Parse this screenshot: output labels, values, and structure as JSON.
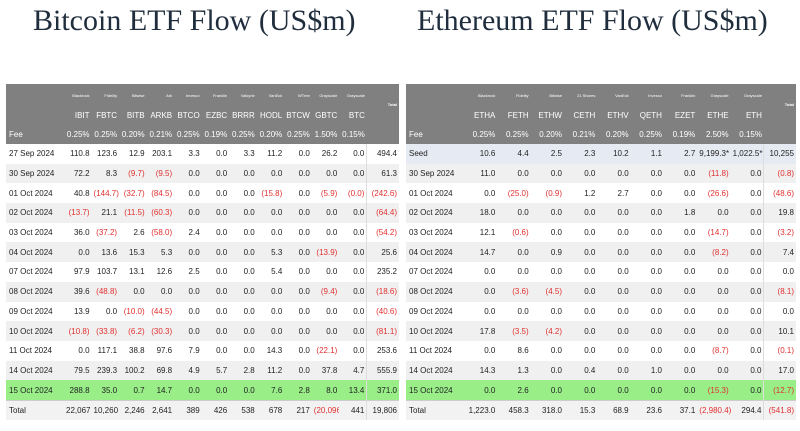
{
  "btc": {
    "title": "Bitcoin ETF Flow (US$m)",
    "issuers": [
      "Blackrock",
      "Fidelity",
      "Bitwise",
      "Ark",
      "Invesco",
      "Franklin",
      "Valkyrie",
      "VanEck",
      "WTree",
      "Grayscale",
      "Grayscale"
    ],
    "tickers": [
      "IBIT",
      "FBTC",
      "BITB",
      "ARKB",
      "BTCO",
      "EZBC",
      "BRRR",
      "HODL",
      "BTCW",
      "GBTC",
      "BTC"
    ],
    "total_header": "Total",
    "fee_label": "Fee",
    "fees": [
      "0.25%",
      "0.25%",
      "0.20%",
      "0.21%",
      "0.25%",
      "0.19%",
      "0.25%",
      "0.20%",
      "0.25%",
      "1.50%",
      "0.15%"
    ],
    "rows": [
      {
        "date": "27 Sep 2024",
        "values": [
          "110.8",
          "123.6",
          "12.9",
          "203.1",
          "3.3",
          "0.0",
          "3.3",
          "11.2",
          "0.0",
          "26.2",
          "0.0"
        ],
        "total": "494.4"
      },
      {
        "date": "30 Sep 2024",
        "values": [
          "72.2",
          "8.3",
          "(9.7)",
          "(9.5)",
          "0.0",
          "0.0",
          "0.0",
          "0.0",
          "0.0",
          "0.0",
          "0.0"
        ],
        "total": "61.3"
      },
      {
        "date": "01 Oct 2024",
        "values": [
          "40.8",
          "(144.7)",
          "(32.7)",
          "(84.5)",
          "0.0",
          "0.0",
          "0.0",
          "(15.8)",
          "0.0",
          "(5.9)",
          "(0.0)"
        ],
        "total": "(242.6)"
      },
      {
        "date": "02 Oct 2024",
        "values": [
          "(13.7)",
          "21.1",
          "(11.5)",
          "(60.3)",
          "0.0",
          "0.0",
          "0.0",
          "0.0",
          "0.0",
          "0.0",
          "0.0"
        ],
        "total": "(64.4)"
      },
      {
        "date": "03 Oct 2024",
        "values": [
          "36.0",
          "(37.2)",
          "2.6",
          "(58.0)",
          "2.4",
          "0.0",
          "0.0",
          "0.0",
          "0.0",
          "0.0",
          "0.0"
        ],
        "total": "(54.2)"
      },
      {
        "date": "04 Oct 2024",
        "values": [
          "0.0",
          "13.6",
          "15.3",
          "5.3",
          "0.0",
          "0.0",
          "0.0",
          "5.3",
          "0.0",
          "(13.9)",
          "0.0"
        ],
        "total": "25.6"
      },
      {
        "date": "07 Oct 2024",
        "values": [
          "97.9",
          "103.7",
          "13.1",
          "12.6",
          "2.5",
          "0.0",
          "0.0",
          "5.4",
          "0.0",
          "0.0",
          "0.0"
        ],
        "total": "235.2"
      },
      {
        "date": "08 Oct 2024",
        "values": [
          "39.6",
          "(48.8)",
          "0.0",
          "0.0",
          "0.0",
          "0.0",
          "0.0",
          "0.0",
          "0.0",
          "(9.4)",
          "0.0"
        ],
        "total": "(18.6)"
      },
      {
        "date": "09 Oct 2024",
        "values": [
          "13.9",
          "0.0",
          "(10.0)",
          "(44.5)",
          "0.0",
          "0.0",
          "0.0",
          "0.0",
          "0.0",
          "0.0",
          "0.0"
        ],
        "total": "(40.6)"
      },
      {
        "date": "10 Oct 2024",
        "values": [
          "(10.8)",
          "(33.8)",
          "(6.2)",
          "(30.3)",
          "0.0",
          "0.0",
          "0.0",
          "0.0",
          "0.0",
          "0.0",
          "0.0"
        ],
        "total": "(81.1)"
      },
      {
        "date": "11 Oct 2024",
        "values": [
          "0.0",
          "117.1",
          "38.8",
          "97.6",
          "7.9",
          "0.0",
          "0.0",
          "14.3",
          "0.0",
          "(22.1)",
          "0.0"
        ],
        "total": "253.6"
      },
      {
        "date": "14 Oct 2024",
        "values": [
          "79.5",
          "239.3",
          "100.2",
          "69.8",
          "4.9",
          "5.7",
          "2.8",
          "11.2",
          "0.0",
          "37.8",
          "4.7"
        ],
        "total": "555.9"
      },
      {
        "date": "15 Oct 2024",
        "values": [
          "288.8",
          "35.0",
          "0.7",
          "14.7",
          "0.0",
          "0.0",
          "0.0",
          "7.6",
          "2.8",
          "8.0",
          "13.4"
        ],
        "total": "371.0",
        "highlight": true
      }
    ],
    "totals_label": "Total",
    "totals": [
      "22,067",
      "10,260",
      "2,246",
      "2,641",
      "389",
      "426",
      "538",
      "678",
      "217",
      "(20,096)",
      "441"
    ],
    "grand_total": "19,806"
  },
  "eth": {
    "title": "Ethereum ETF Flow (US$m)",
    "issuers": [
      "Blackrock",
      "Fidelity",
      "Bitwise",
      "21 Shares",
      "VanEck",
      "Invesco",
      "Franklin",
      "Grayscale",
      "Grayscale"
    ],
    "tickers": [
      "ETHA",
      "FETH",
      "ETHW",
      "CETH",
      "ETHV",
      "QETH",
      "EZET",
      "ETHE",
      "ETH"
    ],
    "total_header": "Total",
    "fee_label": "Fee",
    "fees": [
      "0.25%",
      "0.25%",
      "0.20%",
      "0.21%",
      "0.20%",
      "0.25%",
      "0.19%",
      "2.50%",
      "0.15%"
    ],
    "rows": [
      {
        "date": "Seed",
        "values": [
          "10.6",
          "4.4",
          "2.5",
          "2.3",
          "10.2",
          "1.1",
          "2.7",
          "9,199.3*",
          "1,022.5*"
        ],
        "total": "10,255",
        "seed": true
      },
      {
        "date": "30 Sep 2024",
        "values": [
          "11.0",
          "0.0",
          "0.0",
          "0.0",
          "0.0",
          "0.0",
          "0.0",
          "(11.8)",
          "0.0"
        ],
        "total": "(0.8)"
      },
      {
        "date": "01 Oct 2024",
        "values": [
          "0.0",
          "(25.0)",
          "(0.9)",
          "1.2",
          "2.7",
          "0.0",
          "0.0",
          "(26.6)",
          "0.0"
        ],
        "total": "(48.6)"
      },
      {
        "date": "02 Oct 2024",
        "values": [
          "18.0",
          "0.0",
          "0.0",
          "0.0",
          "0.0",
          "0.0",
          "1.8",
          "0.0",
          "0.0"
        ],
        "total": "19.8"
      },
      {
        "date": "03 Oct 2024",
        "values": [
          "12.1",
          "(0.6)",
          "0.0",
          "0.0",
          "0.0",
          "0.0",
          "0.0",
          "(14.7)",
          "0.0"
        ],
        "total": "(3.2)"
      },
      {
        "date": "04 Oct 2024",
        "values": [
          "14.7",
          "0.0",
          "0.9",
          "0.0",
          "0.0",
          "0.0",
          "0.0",
          "(8.2)",
          "0.0"
        ],
        "total": "7.4"
      },
      {
        "date": "07 Oct 2024",
        "values": [
          "0.0",
          "0.0",
          "0.0",
          "0.0",
          "0.0",
          "0.0",
          "0.0",
          "0.0",
          "0.0"
        ],
        "total": "0.0"
      },
      {
        "date": "08 Oct 2024",
        "values": [
          "0.0",
          "(3.6)",
          "(4.5)",
          "0.0",
          "0.0",
          "0.0",
          "0.0",
          "0.0",
          "0.0"
        ],
        "total": "(8.1)"
      },
      {
        "date": "09 Oct 2024",
        "values": [
          "0.0",
          "0.0",
          "0.0",
          "0.0",
          "0.0",
          "0.0",
          "0.0",
          "0.0",
          "0.0"
        ],
        "total": "0.0"
      },
      {
        "date": "10 Oct 2024",
        "values": [
          "17.8",
          "(3.5)",
          "(4.2)",
          "0.0",
          "0.0",
          "0.0",
          "0.0",
          "0.0",
          "0.0"
        ],
        "total": "10.1"
      },
      {
        "date": "11 Oct 2024",
        "values": [
          "0.0",
          "8.6",
          "0.0",
          "0.0",
          "0.0",
          "0.0",
          "0.0",
          "(8.7)",
          "0.0"
        ],
        "total": "(0.1)"
      },
      {
        "date": "14 Oct 2024",
        "values": [
          "14.3",
          "1.3",
          "0.0",
          "0.4",
          "0.0",
          "1.0",
          "0.0",
          "0.0",
          "0.0"
        ],
        "total": "17.0"
      },
      {
        "date": "15 Oct 2024",
        "values": [
          "0.0",
          "2.6",
          "0.0",
          "0.0",
          "0.0",
          "0.0",
          "0.0",
          "(15.3)",
          "0.0"
        ],
        "total": "(12.7)",
        "highlight": true
      }
    ],
    "totals_label": "Total",
    "totals": [
      "1,223.0",
      "458.3",
      "318.0",
      "15.3",
      "68.9",
      "23.6",
      "37.1",
      "(2,980.4)",
      "294.4"
    ],
    "grand_total": "(541.8)"
  }
}
